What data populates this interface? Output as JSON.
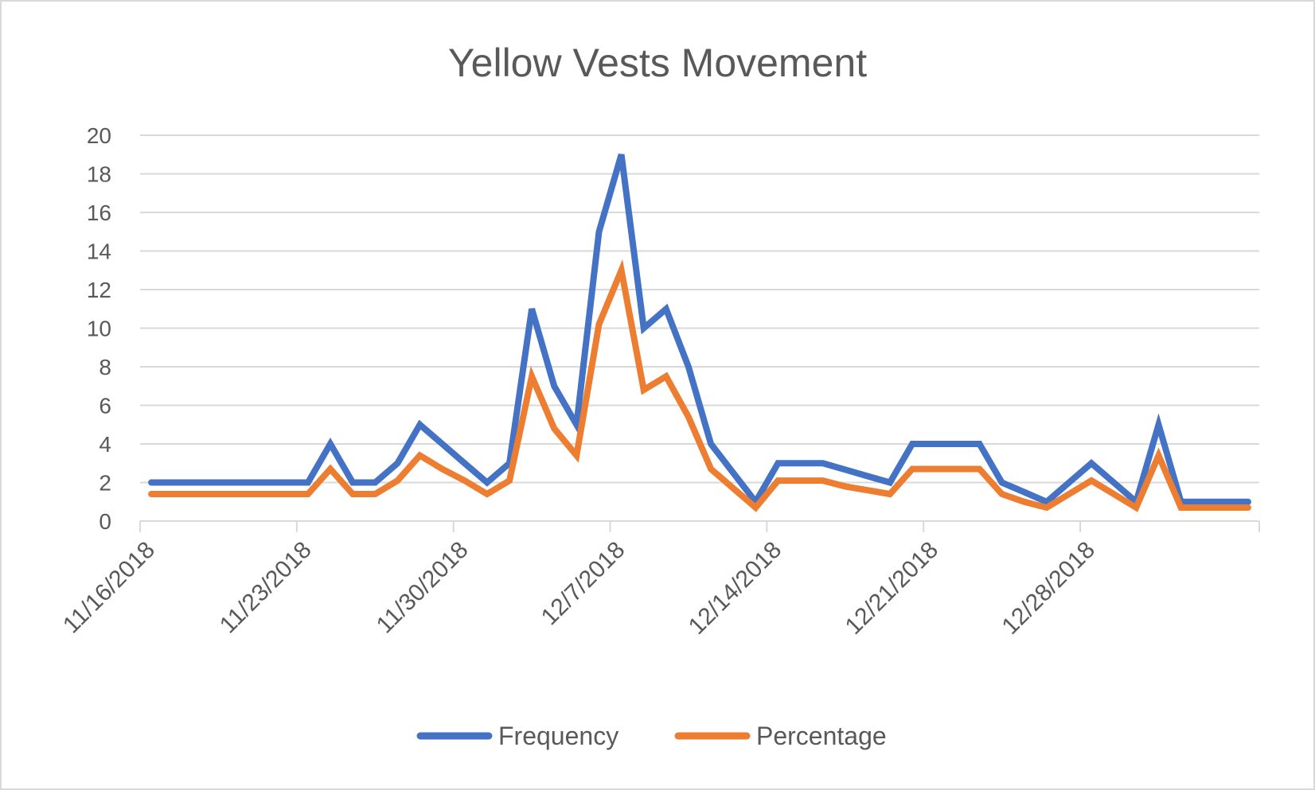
{
  "chart_data": {
    "type": "line",
    "title": "Yellow Vests Movement",
    "xlabel": "",
    "ylabel": "",
    "ylim": [
      0,
      20
    ],
    "yticks": [
      "0",
      "2",
      "4",
      "6",
      "8",
      "10",
      "12",
      "14",
      "16",
      "18",
      "20"
    ],
    "x": [
      "11/16/2018",
      "11/17/2018",
      "11/18/2018",
      "11/19/2018",
      "11/20/2018",
      "11/21/2018",
      "11/22/2018",
      "11/23/2018",
      "11/24/2018",
      "11/25/2018",
      "11/26/2018",
      "11/27/2018",
      "11/28/2018",
      "11/29/2018",
      "11/30/2018",
      "12/1/2018",
      "12/2/2018",
      "12/3/2018",
      "12/4/2018",
      "12/5/2018",
      "12/6/2018",
      "12/7/2018",
      "12/8/2018",
      "12/9/2018",
      "12/10/2018",
      "12/11/2018",
      "12/12/2018",
      "12/13/2018",
      "12/14/2018",
      "12/15/2018",
      "12/16/2018",
      "12/17/2018",
      "12/18/2018",
      "12/19/2018",
      "12/20/2018",
      "12/21/2018",
      "12/22/2018",
      "12/23/2018",
      "12/24/2018",
      "12/25/2018",
      "12/26/2018",
      "12/27/2018",
      "12/28/2018",
      "12/29/2018",
      "12/30/2018",
      "12/31/2018",
      "1/1/2019",
      "1/2/2019",
      "1/3/2019",
      "1/4/2019"
    ],
    "xtick_labels": [
      "11/16/2018",
      "11/23/2018",
      "11/30/2018",
      "12/7/2018",
      "12/14/2018",
      "12/21/2018",
      "12/28/2018"
    ],
    "series": [
      {
        "name": "Frequency",
        "color": "#4472c4",
        "values": [
          2,
          2,
          2,
          2,
          2,
          2,
          2,
          2,
          4,
          2,
          2,
          3,
          5,
          4,
          3,
          2,
          3,
          11,
          7,
          5,
          15,
          19,
          10,
          11,
          8,
          4,
          2.5,
          1,
          3,
          3,
          3,
          2.67,
          2.33,
          2,
          4,
          4,
          4,
          4,
          2,
          1.5,
          1,
          2,
          3,
          2,
          1,
          5,
          1,
          1,
          1,
          1
        ]
      },
      {
        "name": "Percentage",
        "color": "#ed7d31",
        "values": [
          1.4,
          1.4,
          1.4,
          1.4,
          1.4,
          1.4,
          1.4,
          1.4,
          2.7,
          1.4,
          1.4,
          2.1,
          3.4,
          2.7,
          2.1,
          1.4,
          2.1,
          7.5,
          4.8,
          3.4,
          10.2,
          13,
          6.8,
          7.5,
          5.4,
          2.7,
          1.7,
          0.7,
          2.1,
          2.1,
          2.1,
          1.8,
          1.6,
          1.4,
          2.7,
          2.7,
          2.7,
          2.7,
          1.4,
          1,
          0.7,
          1.4,
          2.1,
          1.4,
          0.7,
          3.4,
          0.7,
          0.7,
          0.7,
          0.7
        ]
      }
    ],
    "grid": true,
    "legend_position": "bottom"
  }
}
